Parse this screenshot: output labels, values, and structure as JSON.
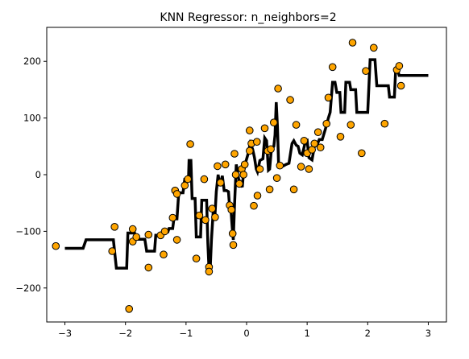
{
  "chart_data": {
    "type": "scatter",
    "title": "KNN Regressor: n_neighbors=2",
    "xlabel": "",
    "ylabel": "",
    "xlim": [
      -3.3,
      3.3
    ],
    "ylim": [
      -260,
      260
    ],
    "x_ticks": [
      -3,
      -2,
      -1,
      0,
      1,
      2,
      3
    ],
    "y_ticks": [
      -200,
      -100,
      0,
      100,
      200
    ],
    "x_tick_labels": [
      "−3",
      "−2",
      "−1",
      "0",
      "1",
      "2",
      "3"
    ],
    "y_tick_labels": [
      "−200",
      "−100",
      "0",
      "100",
      "200"
    ],
    "grid": false,
    "colors": {
      "points": "#ffa500",
      "point_edge": "#000000",
      "line": "#000000"
    },
    "points": [
      [
        -3.15,
        -126
      ],
      [
        -2.22,
        -135
      ],
      [
        -2.18,
        -92
      ],
      [
        -1.94,
        -237
      ],
      [
        -1.88,
        -96
      ],
      [
        -1.88,
        -118
      ],
      [
        -1.82,
        -110
      ],
      [
        -1.62,
        -164
      ],
      [
        -1.62,
        -106
      ],
      [
        -1.42,
        -107
      ],
      [
        -1.37,
        -141
      ],
      [
        -1.35,
        -100
      ],
      [
        -1.22,
        -76
      ],
      [
        -1.18,
        -28
      ],
      [
        -1.15,
        -34
      ],
      [
        -1.15,
        -115
      ],
      [
        -1.02,
        -19
      ],
      [
        -0.97,
        -8
      ],
      [
        -0.93,
        54
      ],
      [
        -0.83,
        -148
      ],
      [
        -0.78,
        -72
      ],
      [
        -0.7,
        -8
      ],
      [
        -0.68,
        -80
      ],
      [
        -0.62,
        -163
      ],
      [
        -0.62,
        -171
      ],
      [
        -0.57,
        -60
      ],
      [
        -0.52,
        -75
      ],
      [
        -0.48,
        15
      ],
      [
        -0.43,
        -14
      ],
      [
        -0.35,
        18
      ],
      [
        -0.28,
        -54
      ],
      [
        -0.25,
        -62
      ],
      [
        -0.23,
        -104
      ],
      [
        -0.22,
        -124
      ],
      [
        -0.2,
        37
      ],
      [
        -0.18,
        0
      ],
      [
        -0.12,
        -16
      ],
      [
        -0.08,
        10
      ],
      [
        -0.05,
        0
      ],
      [
        -0.03,
        18
      ],
      [
        0.05,
        78
      ],
      [
        0.05,
        42
      ],
      [
        0.08,
        55
      ],
      [
        0.12,
        -55
      ],
      [
        0.17,
        58
      ],
      [
        0.18,
        -37
      ],
      [
        0.22,
        10
      ],
      [
        0.3,
        82
      ],
      [
        0.35,
        42
      ],
      [
        0.38,
        -26
      ],
      [
        0.4,
        45
      ],
      [
        0.45,
        92
      ],
      [
        0.5,
        -6
      ],
      [
        0.52,
        152
      ],
      [
        0.55,
        16
      ],
      [
        0.72,
        132
      ],
      [
        0.78,
        -26
      ],
      [
        0.82,
        88
      ],
      [
        0.9,
        14
      ],
      [
        0.95,
        60
      ],
      [
        1.0,
        38
      ],
      [
        1.03,
        10
      ],
      [
        1.08,
        44
      ],
      [
        1.12,
        55
      ],
      [
        1.18,
        75
      ],
      [
        1.22,
        48
      ],
      [
        1.32,
        90
      ],
      [
        1.35,
        136
      ],
      [
        1.42,
        190
      ],
      [
        1.55,
        67
      ],
      [
        1.72,
        88
      ],
      [
        1.75,
        233
      ],
      [
        1.9,
        38
      ],
      [
        2.1,
        224
      ],
      [
        2.28,
        90
      ],
      [
        2.48,
        185
      ],
      [
        2.52,
        192
      ],
      [
        2.55,
        157
      ],
      [
        1.97,
        183
      ]
    ],
    "series": [
      {
        "type": "step-line",
        "values": [
          [
            -3.0,
            -130
          ],
          [
            -2.7,
            -130
          ],
          [
            -2.65,
            -115
          ],
          [
            -2.2,
            -115
          ],
          [
            -2.15,
            -165
          ],
          [
            -1.98,
            -165
          ],
          [
            -1.96,
            -103
          ],
          [
            -1.85,
            -103
          ],
          [
            -1.82,
            -114
          ],
          [
            -1.68,
            -114
          ],
          [
            -1.65,
            -135
          ],
          [
            -1.52,
            -135
          ],
          [
            -1.5,
            -107
          ],
          [
            -1.4,
            -107
          ],
          [
            -1.37,
            -101
          ],
          [
            -1.3,
            -101
          ],
          [
            -1.28,
            -95
          ],
          [
            -1.22,
            -95
          ],
          [
            -1.2,
            -78
          ],
          [
            -1.15,
            -78
          ],
          [
            -1.12,
            -32
          ],
          [
            -1.05,
            -32
          ],
          [
            -1.02,
            -8
          ],
          [
            -0.96,
            -8
          ],
          [
            -0.95,
            25
          ],
          [
            -0.92,
            25
          ],
          [
            -0.9,
            -42
          ],
          [
            -0.85,
            -42
          ],
          [
            -0.83,
            -110
          ],
          [
            -0.76,
            -110
          ],
          [
            -0.74,
            -45
          ],
          [
            -0.66,
            -45
          ],
          [
            -0.64,
            -120
          ],
          [
            -0.62,
            -168
          ],
          [
            -0.6,
            -165
          ],
          [
            -0.58,
            -115
          ],
          [
            -0.55,
            -62
          ],
          [
            -0.52,
            -68
          ],
          [
            -0.5,
            -30
          ],
          [
            -0.47,
            0
          ],
          [
            -0.44,
            -20
          ],
          [
            -0.4,
            -2
          ],
          [
            -0.37,
            -28
          ],
          [
            -0.33,
            -28
          ],
          [
            -0.3,
            -30
          ],
          [
            -0.28,
            -58
          ],
          [
            -0.26,
            -60
          ],
          [
            -0.24,
            -90
          ],
          [
            -0.22,
            -115
          ],
          [
            -0.2,
            -55
          ],
          [
            -0.17,
            18
          ],
          [
            -0.13,
            -8
          ],
          [
            -0.1,
            -15
          ],
          [
            -0.07,
            -22
          ],
          [
            -0.05,
            5
          ],
          [
            -0.02,
            20
          ],
          [
            0.02,
            35
          ],
          [
            0.06,
            55
          ],
          [
            0.1,
            45
          ],
          [
            0.13,
            30
          ],
          [
            0.16,
            10
          ],
          [
            0.18,
            5
          ],
          [
            0.22,
            25
          ],
          [
            0.27,
            28
          ],
          [
            0.3,
            65
          ],
          [
            0.33,
            60
          ],
          [
            0.36,
            8
          ],
          [
            0.38,
            10
          ],
          [
            0.41,
            45
          ],
          [
            0.45,
            50
          ],
          [
            0.47,
            70
          ],
          [
            0.49,
            128
          ],
          [
            0.51,
            85
          ],
          [
            0.53,
            15
          ],
          [
            0.6,
            15
          ],
          [
            0.65,
            18
          ],
          [
            0.7,
            20
          ],
          [
            0.75,
            55
          ],
          [
            0.78,
            60
          ],
          [
            0.82,
            52
          ],
          [
            0.85,
            50
          ],
          [
            0.88,
            38
          ],
          [
            0.92,
            35
          ],
          [
            0.97,
            58
          ],
          [
            1.0,
            60
          ],
          [
            1.03,
            30
          ],
          [
            1.08,
            26
          ],
          [
            1.12,
            50
          ],
          [
            1.16,
            52
          ],
          [
            1.2,
            62
          ],
          [
            1.25,
            62
          ],
          [
            1.3,
            80
          ],
          [
            1.35,
            100
          ],
          [
            1.38,
            110
          ],
          [
            1.42,
            163
          ],
          [
            1.46,
            163
          ],
          [
            1.49,
            145
          ],
          [
            1.54,
            145
          ],
          [
            1.56,
            110
          ],
          [
            1.62,
            110
          ],
          [
            1.64,
            163
          ],
          [
            1.7,
            163
          ],
          [
            1.72,
            150
          ],
          [
            1.8,
            150
          ],
          [
            1.82,
            110
          ],
          [
            2.0,
            110
          ],
          [
            2.04,
            203
          ],
          [
            2.12,
            203
          ],
          [
            2.15,
            157
          ],
          [
            2.34,
            157
          ],
          [
            2.36,
            137
          ],
          [
            2.44,
            137
          ],
          [
            2.46,
            182
          ],
          [
            2.5,
            182
          ],
          [
            2.52,
            175
          ],
          [
            3.0,
            175
          ]
        ]
      }
    ]
  }
}
